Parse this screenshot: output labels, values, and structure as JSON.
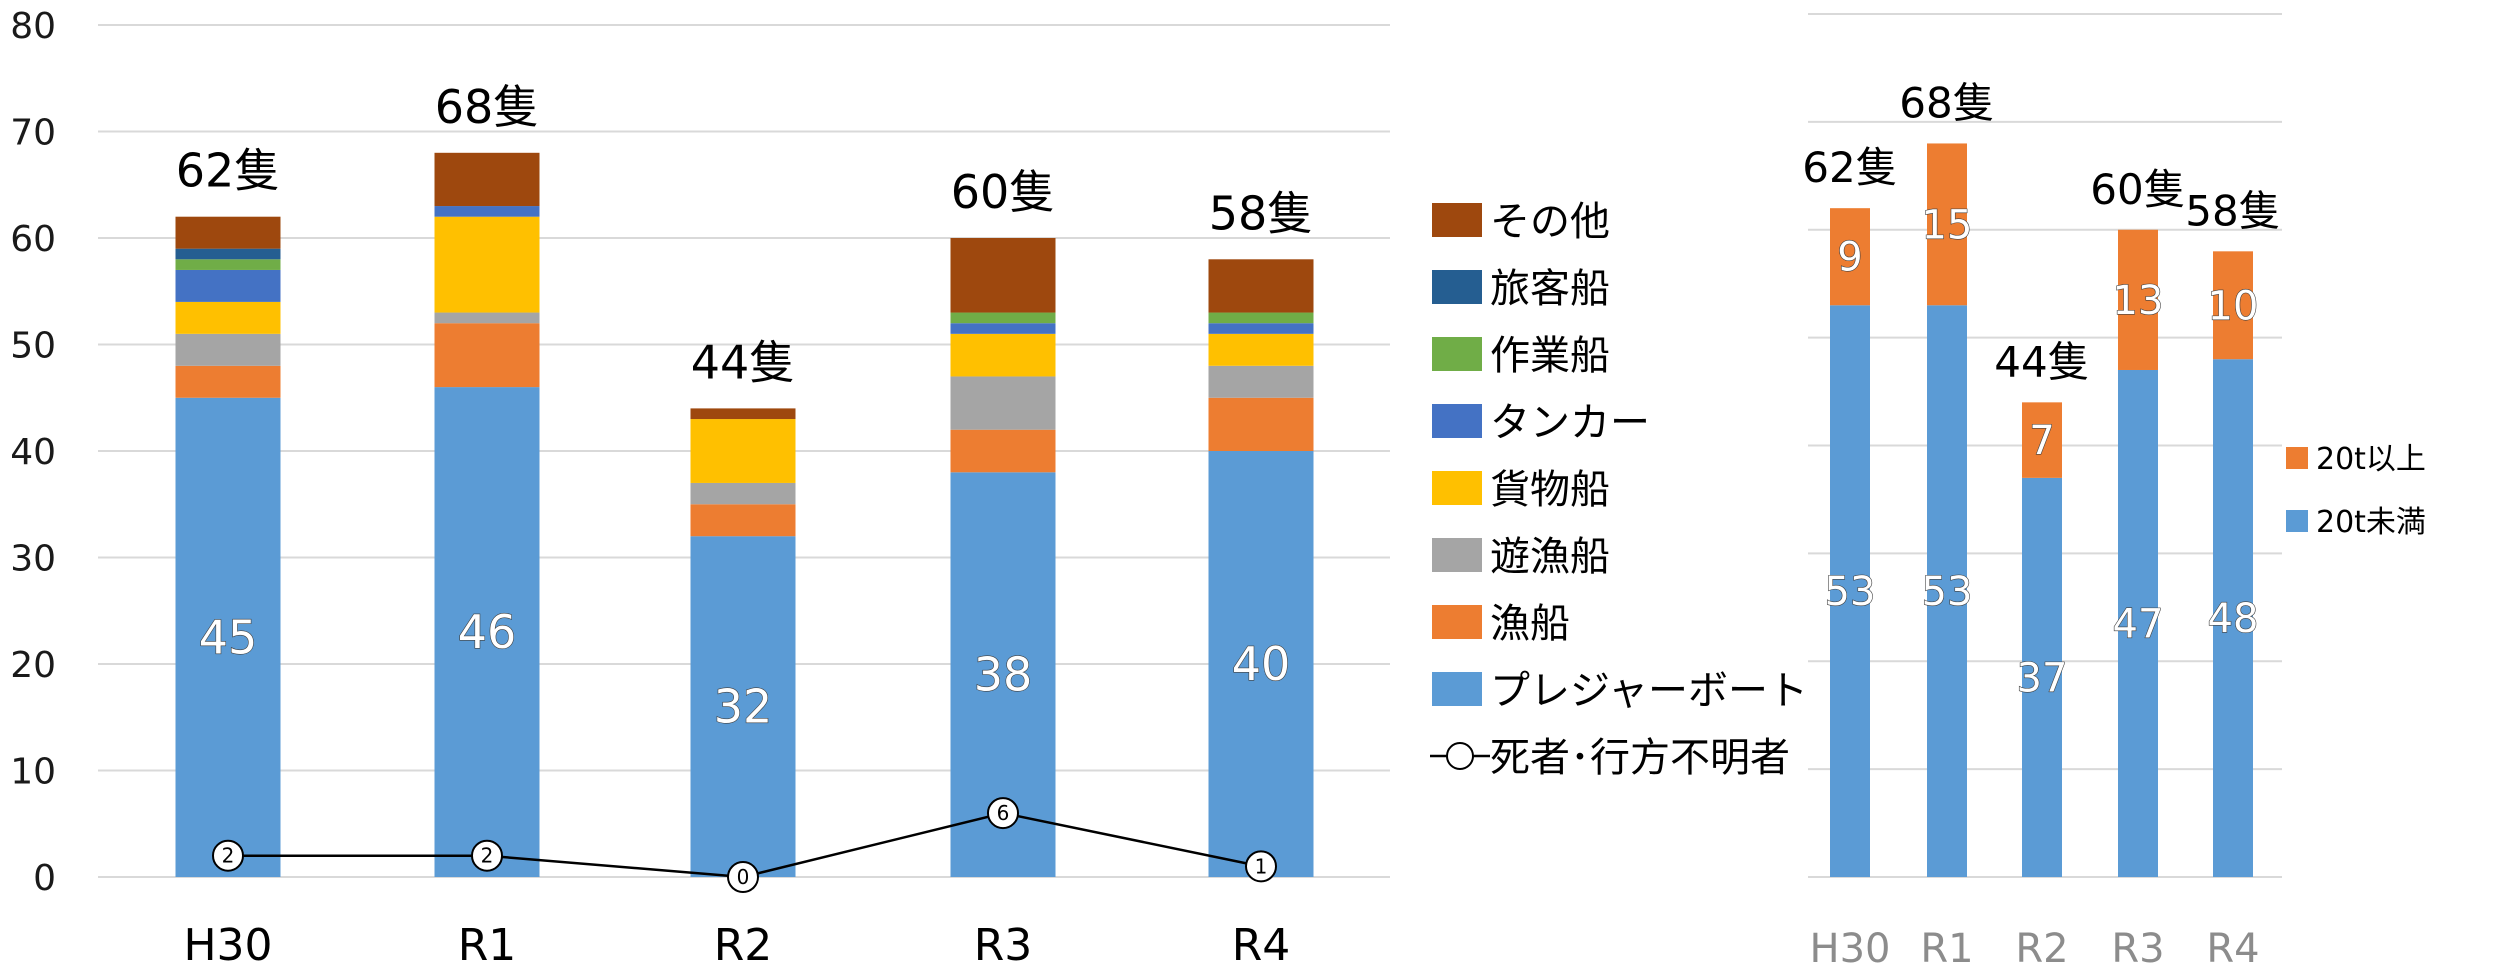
{
  "chart_data": [
    {
      "type": "bar",
      "stacked": true,
      "categories": [
        "H30",
        "R1",
        "R2",
        "R3",
        "R4"
      ],
      "ylim": [
        0,
        80
      ],
      "yticks": [
        0,
        10,
        20,
        30,
        40,
        50,
        60,
        70,
        80
      ],
      "grid": true,
      "legend_position": "right",
      "totals_labels": [
        "62隻",
        "68隻",
        "44隻",
        "60隻",
        "58隻"
      ],
      "series": [
        {
          "name": "プレジャーボート",
          "color": "#5B9BD5",
          "values": [
            45,
            46,
            32,
            38,
            40
          ],
          "show_labels": true
        },
        {
          "name": "漁船",
          "color": "#ED7D31",
          "values": [
            3,
            6,
            3,
            4,
            5
          ]
        },
        {
          "name": "遊漁船",
          "color": "#A5A5A5",
          "values": [
            3,
            1,
            2,
            5,
            3
          ]
        },
        {
          "name": "貨物船",
          "color": "#FFC000",
          "values": [
            3,
            9,
            6,
            4,
            3
          ]
        },
        {
          "name": "タンカー",
          "color": "#4472C4",
          "values": [
            3,
            1,
            0,
            1,
            1
          ]
        },
        {
          "name": "作業船",
          "color": "#70AD47",
          "values": [
            1,
            0,
            0,
            1,
            1
          ]
        },
        {
          "name": "旅客船",
          "color": "#255E91",
          "values": [
            1,
            0,
            0,
            0,
            0
          ]
        },
        {
          "name": "その他",
          "color": "#9E480E",
          "values": [
            3,
            5,
            1,
            7,
            5
          ]
        }
      ],
      "line_series": {
        "name": "死者･行方不明者",
        "values": [
          2,
          2,
          0,
          6,
          1
        ]
      },
      "legend_order": [
        "その他",
        "旅客船",
        "作業船",
        "タンカー",
        "貨物船",
        "遊漁船",
        "漁船",
        "プレジャーボート",
        "死者･行方不明者"
      ]
    },
    {
      "type": "bar",
      "stacked": true,
      "categories": [
        "H30",
        "R1",
        "R2",
        "R3",
        "R4"
      ],
      "ylim": [
        0,
        80
      ],
      "grid": true,
      "legend_position": "right",
      "totals_labels": [
        "62隻",
        "68隻",
        "44隻",
        "60隻",
        "58隻"
      ],
      "series": [
        {
          "name": "20t未満",
          "color": "#5B9BD5",
          "values": [
            53,
            53,
            37,
            47,
            48
          ]
        },
        {
          "name": "20t以上",
          "color": "#ED7D31",
          "values": [
            9,
            15,
            7,
            13,
            10
          ]
        }
      ],
      "legend_order": [
        "20t以上",
        "20t未満"
      ]
    }
  ]
}
